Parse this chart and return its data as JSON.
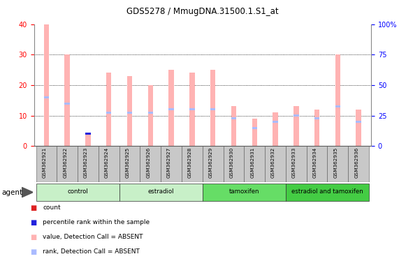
{
  "title": "GDS5278 / MmugDNA.31500.1.S1_at",
  "samples": [
    "GSM362921",
    "GSM362922",
    "GSM362923",
    "GSM362924",
    "GSM362925",
    "GSM362926",
    "GSM362927",
    "GSM362928",
    "GSM362929",
    "GSM362930",
    "GSM362931",
    "GSM362932",
    "GSM362933",
    "GSM362934",
    "GSM362935",
    "GSM362936"
  ],
  "count_values": [
    40,
    30,
    4,
    24,
    23,
    20,
    25,
    24,
    25,
    13,
    9,
    11,
    13,
    12,
    30,
    12
  ],
  "rank_values": [
    16,
    14,
    4,
    11,
    11,
    11,
    12,
    12,
    12,
    9,
    6,
    8,
    10,
    9,
    13,
    8
  ],
  "count_absent": [
    true,
    true,
    true,
    true,
    true,
    true,
    true,
    true,
    true,
    true,
    true,
    true,
    true,
    true,
    true,
    true
  ],
  "rank_absent": [
    true,
    true,
    false,
    true,
    true,
    true,
    true,
    true,
    true,
    true,
    true,
    true,
    true,
    true,
    true,
    true
  ],
  "ylim_left": [
    0,
    40
  ],
  "ylim_right": [
    0,
    100
  ],
  "yticks_left": [
    0,
    10,
    20,
    30,
    40
  ],
  "yticks_right": [
    0,
    25,
    50,
    75,
    100
  ],
  "ytick_labels_right": [
    "0",
    "25",
    "50",
    "75",
    "100%"
  ],
  "group_labels": [
    "control",
    "estradiol",
    "tamoxifen",
    "estradiol and tamoxifen"
  ],
  "group_starts": [
    0,
    4,
    8,
    12
  ],
  "group_ends": [
    3,
    7,
    11,
    15
  ],
  "group_colors": [
    "#c8f0c8",
    "#c8f0c8",
    "#66dd66",
    "#44cc44"
  ],
  "bar_width": 0.25,
  "color_count_present": "#dd2222",
  "color_count_absent": "#ffb3b3",
  "color_rank_present": "#2222dd",
  "color_rank_absent": "#aabbff",
  "legend_items": [
    {
      "label": "count",
      "color": "#dd2222"
    },
    {
      "label": "percentile rank within the sample",
      "color": "#2222dd"
    },
    {
      "label": "value, Detection Call = ABSENT",
      "color": "#ffb3b3"
    },
    {
      "label": "rank, Detection Call = ABSENT",
      "color": "#aabbff"
    }
  ],
  "agent_label": "agent",
  "background_color": "#ffffff",
  "plot_bg_color": "#ffffff",
  "xtick_bg_color": "#c8c8c8"
}
